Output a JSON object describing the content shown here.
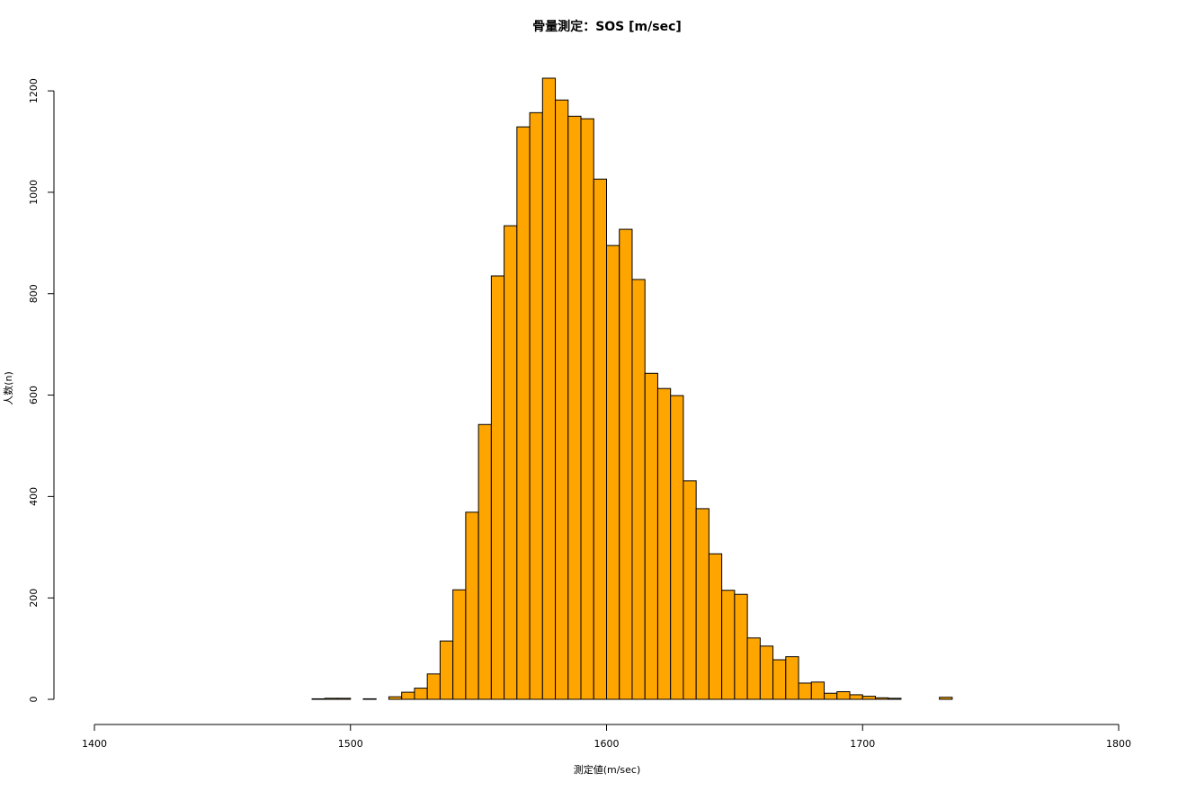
{
  "chart_data": {
    "type": "histogram",
    "title": "骨量測定：SOS [m/sec]",
    "x_label": "測定値(m/sec)",
    "y_label": "人数(n)",
    "bins": [
      1485,
      1490,
      1495,
      1500,
      1505,
      1510,
      1515,
      1520,
      1525,
      1530,
      1535,
      1540,
      1545,
      1550,
      1555,
      1560,
      1565,
      1570,
      1575,
      1580,
      1585,
      1590,
      1595,
      1600,
      1605,
      1610,
      1615,
      1620,
      1625,
      1630,
      1635,
      1640,
      1645,
      1650,
      1655,
      1660,
      1665,
      1670,
      1675,
      1680,
      1685,
      1690,
      1695,
      1700,
      1705,
      1710,
      1715,
      1720,
      1725,
      1730,
      1735,
      1740
    ],
    "counts": [
      1,
      2,
      2,
      0,
      1,
      0,
      5,
      14,
      22,
      50,
      115,
      216,
      369,
      542,
      835,
      934,
      1129,
      1157,
      1225,
      1182,
      1150,
      1145,
      1026,
      895,
      927,
      828,
      643,
      613,
      599,
      431,
      376,
      287,
      215,
      207,
      121,
      105,
      78,
      84,
      32,
      34,
      12,
      15,
      9,
      6,
      3,
      2,
      0,
      0,
      0,
      4,
      0
    ],
    "color": "#ffa500",
    "xlim": [
      1400,
      1800
    ],
    "xticks": [
      1400,
      1500,
      1600,
      1700,
      1800
    ],
    "ylim": [
      0,
      1225
    ],
    "yticks": [
      0,
      200,
      400,
      600,
      800,
      1000,
      1200
    ]
  }
}
